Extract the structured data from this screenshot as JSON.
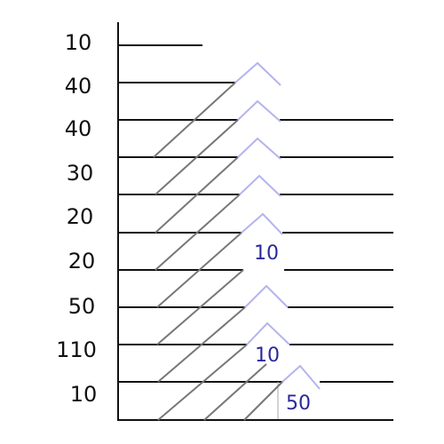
{
  "left_labels": [
    10,
    40,
    40,
    30,
    20,
    20,
    50,
    110,
    10
  ],
  "inner_labels": [
    10,
    10,
    50
  ]
}
